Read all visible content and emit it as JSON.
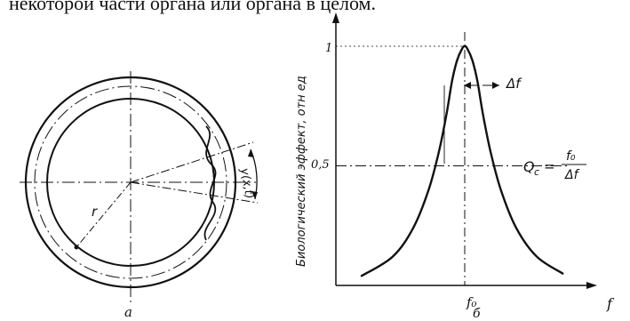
{
  "top_text": "некоторой части органа или органа в целом.",
  "left_figure": {
    "caption": "а",
    "radius_label": "r",
    "deformation_label": "y(x,t)"
  },
  "right_figure": {
    "y_axis_label": "Биологический эффект, отн ед",
    "x_axis_label": "f",
    "caption": "б",
    "annotations": {
      "delta_f": "Δf",
      "q_formula_lhs": "Q",
      "q_formula_sub": "c",
      "q_formula_eq": "=",
      "q_formula_num": "f₀",
      "q_formula_den": "Δf",
      "f0_label": "f₀"
    }
  },
  "chart_data": {
    "type": "line",
    "title": "",
    "xlabel": "f",
    "ylabel": "Биологический эффект, отн ед",
    "ytick_labels": [
      "0,5",
      "1"
    ],
    "xtick_labels": [
      "f₀"
    ],
    "ylim": [
      0,
      1.05
    ],
    "xlim": [
      0,
      1
    ],
    "grid": false,
    "series": [
      {
        "x": [
          0.1,
          0.22,
          0.3,
          0.36,
          0.4,
          0.43,
          0.45,
          0.47,
          0.49,
          0.5,
          0.51,
          0.53,
          0.55,
          0.57,
          0.6,
          0.64,
          0.7,
          0.78,
          0.88
        ],
        "values": [
          0.04,
          0.12,
          0.24,
          0.4,
          0.56,
          0.72,
          0.85,
          0.94,
          0.99,
          1.0,
          0.99,
          0.94,
          0.85,
          0.72,
          0.56,
          0.4,
          0.24,
          0.12,
          0.05
        ]
      }
    ]
  }
}
